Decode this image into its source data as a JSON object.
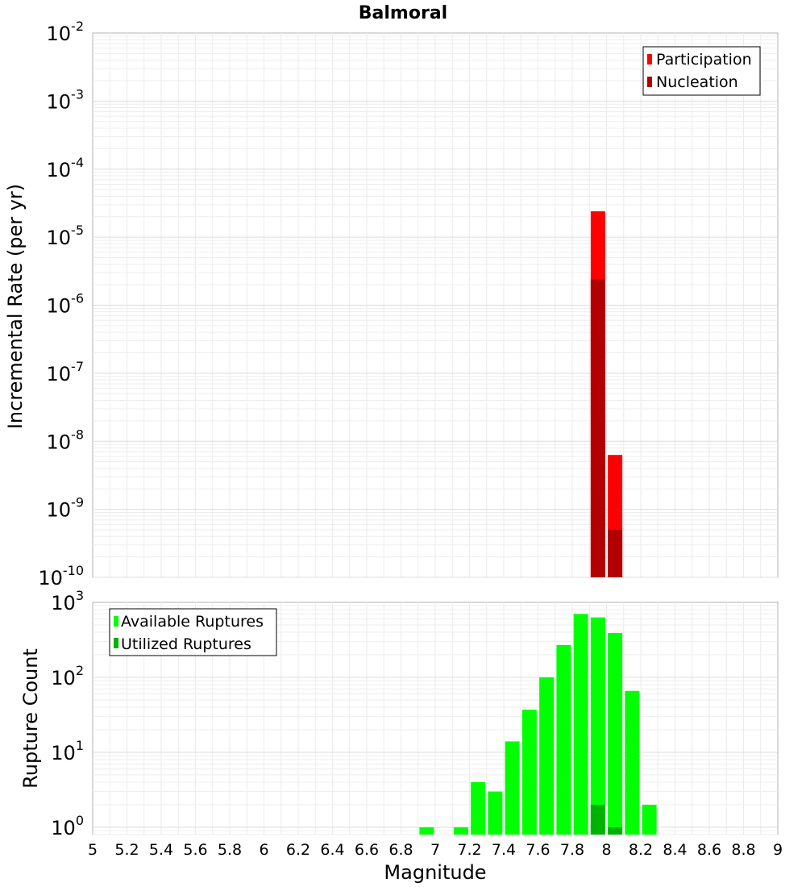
{
  "chart_data": [
    {
      "type": "bar",
      "title": "Balmoral",
      "ylabel": "Incremental Rate (per yr)",
      "xlim": [
        5,
        9
      ],
      "ylim": [
        1e-10,
        0.01
      ],
      "yscale": "log",
      "grid": true,
      "legend_position": "top-right",
      "y_tick_labels": [
        {
          "base": "10",
          "exp": "-2"
        },
        {
          "base": "10",
          "exp": "-3"
        },
        {
          "base": "10",
          "exp": "-4"
        },
        {
          "base": "10",
          "exp": "-5"
        },
        {
          "base": "10",
          "exp": "-6"
        },
        {
          "base": "10",
          "exp": "-7"
        },
        {
          "base": "10",
          "exp": "-8"
        },
        {
          "base": "10",
          "exp": "-9"
        },
        {
          "base": "10",
          "exp": "-10"
        }
      ],
      "series": [
        {
          "name": "Participation",
          "color": "#ff0000",
          "x": [
            7.95,
            8.05
          ],
          "values": [
            2.4e-05,
            6.3e-09
          ]
        },
        {
          "name": "Nucleation",
          "color": "#b20000",
          "x": [
            7.95,
            8.05
          ],
          "values": [
            2.4e-06,
            5e-10
          ]
        }
      ]
    },
    {
      "type": "bar",
      "xlabel": "Magnitude",
      "ylabel": "Rupture Count",
      "xlim": [
        5,
        9
      ],
      "ylim": [
        0.8,
        1000
      ],
      "yscale": "log",
      "grid": true,
      "legend_position": "top-left",
      "y_tick_labels": [
        {
          "base": "10",
          "exp": "3"
        },
        {
          "base": "10",
          "exp": "2"
        },
        {
          "base": "10",
          "exp": "1"
        },
        {
          "base": "10",
          "exp": "0"
        }
      ],
      "x_tick_labels": [
        "5",
        "5.2",
        "5.4",
        "5.6",
        "5.8",
        "6",
        "6.2",
        "6.4",
        "6.6",
        "6.8",
        "7",
        "7.2",
        "7.4",
        "7.6",
        "7.8",
        "8",
        "8.2",
        "8.4",
        "8.6",
        "8.8",
        "9"
      ],
      "series": [
        {
          "name": "Available Ruptures",
          "color": "#00ff00",
          "x": [
            6.95,
            7.15,
            7.25,
            7.35,
            7.45,
            7.55,
            7.65,
            7.75,
            7.85,
            7.95,
            8.05,
            8.15,
            8.25
          ],
          "values": [
            1,
            1,
            4,
            3,
            14,
            37,
            100,
            270,
            700,
            630,
            390,
            66,
            2
          ]
        },
        {
          "name": "Utilized Ruptures",
          "color": "#00b200",
          "x": [
            7.95,
            8.05
          ],
          "values": [
            2,
            1
          ]
        }
      ]
    }
  ]
}
